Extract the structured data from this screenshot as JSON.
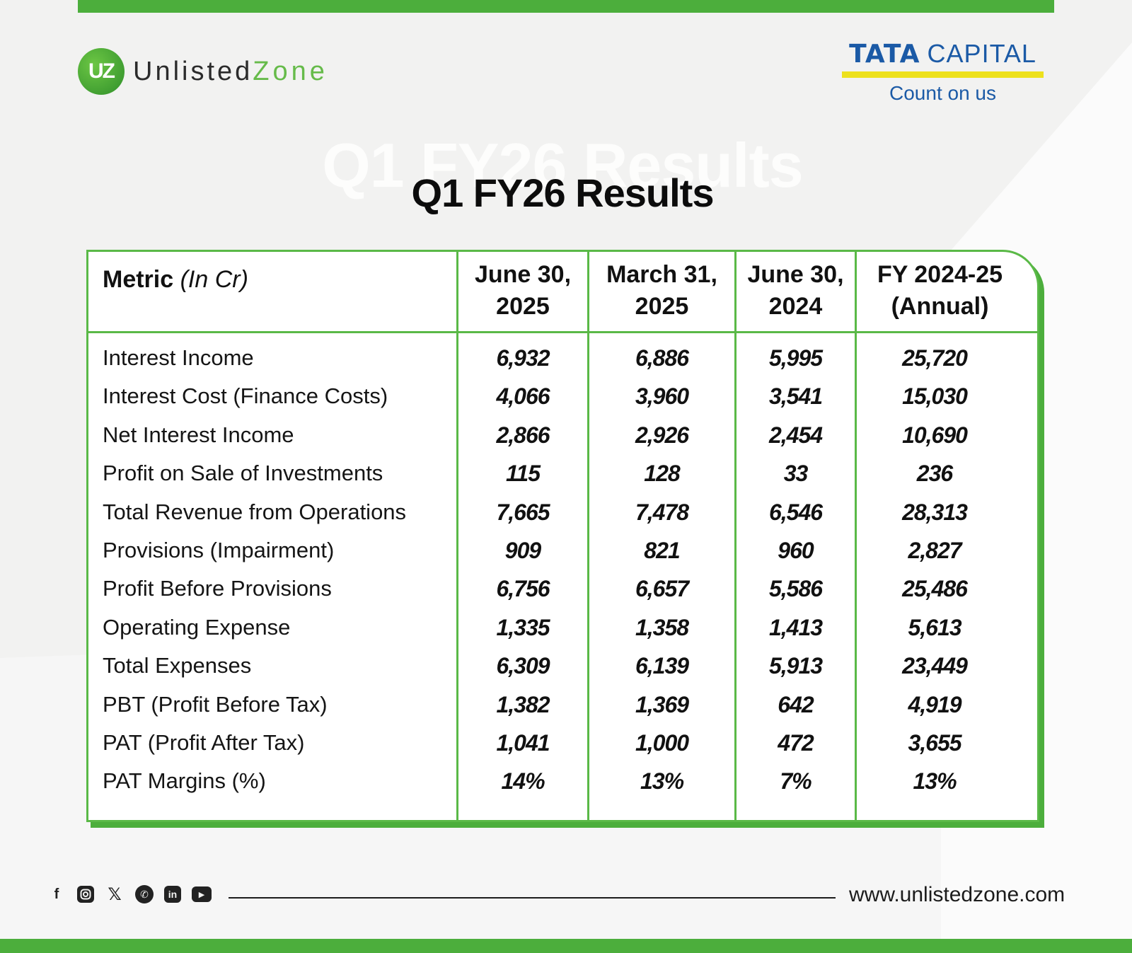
{
  "brand": {
    "logo_mark": "UZ",
    "name_part1": "Unlisted",
    "name_part2": "Zone"
  },
  "partner": {
    "name_part1": "TATA",
    "name_part2": "CAPITAL",
    "tagline": "Count on us"
  },
  "title": "Q1 FY26 Results",
  "ghost_title": "Q1 FY26 Results",
  "table": {
    "metric_header": "Metric",
    "metric_unit": "(In Cr)",
    "columns": [
      {
        "line1": "June 30,",
        "line2": "2025"
      },
      {
        "line1": "March 31,",
        "line2": "2025"
      },
      {
        "line1": "June 30,",
        "line2": "2024"
      },
      {
        "line1": "FY 2024-25",
        "line2": "(Annual)"
      }
    ],
    "rows": [
      {
        "label": "Interest Income",
        "values": [
          "6,932",
          "6,886",
          "5,995",
          "25,720"
        ]
      },
      {
        "label": "Interest Cost (Finance Costs)",
        "values": [
          "4,066",
          "3,960",
          "3,541",
          "15,030"
        ]
      },
      {
        "label": "Net Interest Income",
        "values": [
          "2,866",
          "2,926",
          "2,454",
          "10,690"
        ]
      },
      {
        "label": "Profit on Sale of Investments",
        "values": [
          "115",
          "128",
          "33",
          "236"
        ]
      },
      {
        "label": "Total Revenue from Operations",
        "values": [
          "7,665",
          "7,478",
          "6,546",
          "28,313"
        ]
      },
      {
        "label": "Provisions (Impairment)",
        "values": [
          "909",
          "821",
          "960",
          "2,827"
        ]
      },
      {
        "label": "Profit Before Provisions",
        "values": [
          "6,756",
          "6,657",
          "5,586",
          "25,486"
        ]
      },
      {
        "label": "Operating Expense",
        "values": [
          "1,335",
          "1,358",
          "1,413",
          "5,613"
        ]
      },
      {
        "label": "Total Expenses",
        "values": [
          "6,309",
          "6,139",
          "5,913",
          "23,449"
        ]
      },
      {
        "label": "PBT (Profit Before Tax)",
        "values": [
          "1,382",
          "1,369",
          "642",
          "4,919"
        ]
      },
      {
        "label": "PAT (Profit After Tax)",
        "values": [
          "1,041",
          "1,000",
          "472",
          "3,655"
        ]
      },
      {
        "label": "PAT Margins (%)",
        "values": [
          "14%",
          "13%",
          "7%",
          "13%"
        ]
      }
    ]
  },
  "footer": {
    "social_icons": [
      "facebook-icon",
      "instagram-icon",
      "x-icon",
      "whatsapp-icon",
      "linkedin-icon",
      "youtube-icon"
    ],
    "website": "www.unlistedzone.com"
  },
  "colors": {
    "accent_green": "#4cae3c",
    "table_border": "#5ab947",
    "tata_blue": "#1b5aa6",
    "tata_yellow": "#ede11d"
  }
}
